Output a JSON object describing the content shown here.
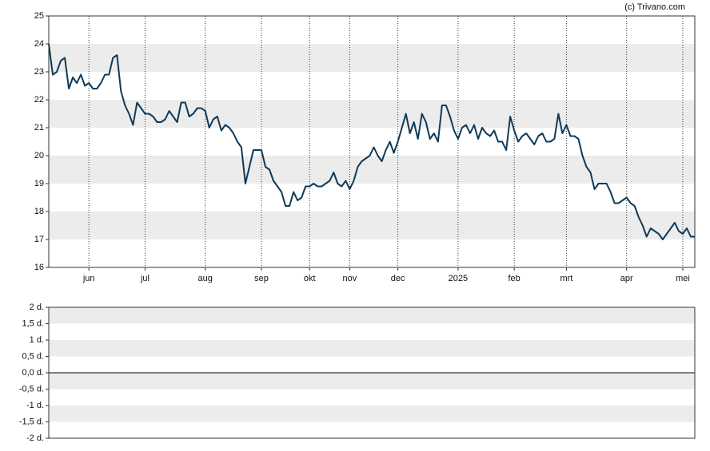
{
  "credit": "(c) Trivano.com",
  "chart_data": [
    {
      "type": "line",
      "color": "#0e3a57",
      "values": [
        24.0,
        22.9,
        23.0,
        23.4,
        23.5,
        22.4,
        22.8,
        22.6,
        22.9,
        22.5,
        22.6,
        22.4,
        22.4,
        22.6,
        22.9,
        22.9,
        23.5,
        23.6,
        22.3,
        21.8,
        21.5,
        21.1,
        21.9,
        21.7,
        21.5,
        21.5,
        21.4,
        21.2,
        21.2,
        21.3,
        21.6,
        21.4,
        21.2,
        21.9,
        21.9,
        21.4,
        21.5,
        21.7,
        21.7,
        21.6,
        21.0,
        21.3,
        21.4,
        20.9,
        21.1,
        21.0,
        20.8,
        20.5,
        20.3,
        19.0,
        19.6,
        20.2,
        20.2,
        20.2,
        19.6,
        19.5,
        19.1,
        18.9,
        18.7,
        18.2,
        18.2,
        18.7,
        18.4,
        18.5,
        18.9,
        18.9,
        19.0,
        18.9,
        18.9,
        19.0,
        19.1,
        19.4,
        19.0,
        18.9,
        19.1,
        18.8,
        19.1,
        19.6,
        19.8,
        19.9,
        20.0,
        20.3,
        20.0,
        19.8,
        20.2,
        20.5,
        20.1,
        20.5,
        21.0,
        21.5,
        20.8,
        21.2,
        20.6,
        21.5,
        21.2,
        20.6,
        20.8,
        20.5,
        21.8,
        21.8,
        21.4,
        20.9,
        20.6,
        21.0,
        21.1,
        20.8,
        21.1,
        20.6,
        21.0,
        20.8,
        20.7,
        20.9,
        20.5,
        20.5,
        20.2,
        21.4,
        20.9,
        20.5,
        20.7,
        20.8,
        20.6,
        20.4,
        20.7,
        20.8,
        20.5,
        20.5,
        20.6,
        21.5,
        20.8,
        21.1,
        20.7,
        20.7,
        20.6,
        20.0,
        19.6,
        19.4,
        18.8,
        19.0,
        19.0,
        19.0,
        18.7,
        18.3,
        18.3,
        18.4,
        18.5,
        18.3,
        18.2,
        17.8,
        17.5,
        17.1,
        17.4,
        17.3,
        17.2,
        17.0,
        17.2,
        17.4,
        17.6,
        17.3,
        17.2,
        17.4,
        17.1,
        17.1
      ],
      "xlim": [
        0,
        161
      ],
      "xticks": [
        {
          "value": 10,
          "label": "jun"
        },
        {
          "value": 24,
          "label": "jul"
        },
        {
          "value": 39,
          "label": "aug"
        },
        {
          "value": 53,
          "label": "sep"
        },
        {
          "value": 65,
          "label": "okt"
        },
        {
          "value": 75,
          "label": "nov"
        },
        {
          "value": 87,
          "label": "dec"
        },
        {
          "value": 102,
          "label": "2025"
        },
        {
          "value": 116,
          "label": "feb"
        },
        {
          "value": 129,
          "label": "mrt"
        },
        {
          "value": 144,
          "label": "apr"
        },
        {
          "value": 158,
          "label": "mei"
        }
      ],
      "ylim": [
        16,
        25
      ],
      "yticks": [
        16,
        17,
        18,
        19,
        20,
        21,
        22,
        23,
        24,
        25
      ],
      "grid": true
    },
    {
      "type": "line",
      "ylim": [
        -2,
        2
      ],
      "yticks": [
        {
          "value": -2,
          "label": "-2 d."
        },
        {
          "value": -1.5,
          "label": "-1,5 d."
        },
        {
          "value": -1,
          "label": "-1 d."
        },
        {
          "value": -0.5,
          "label": "-0,5 d."
        },
        {
          "value": 0,
          "label": "0,0 d."
        },
        {
          "value": 0.5,
          "label": "0,5 d."
        },
        {
          "value": 1,
          "label": "1 d."
        },
        {
          "value": 1.5,
          "label": "1,5 d."
        },
        {
          "value": 2,
          "label": "2 d."
        }
      ],
      "grid": true
    }
  ]
}
